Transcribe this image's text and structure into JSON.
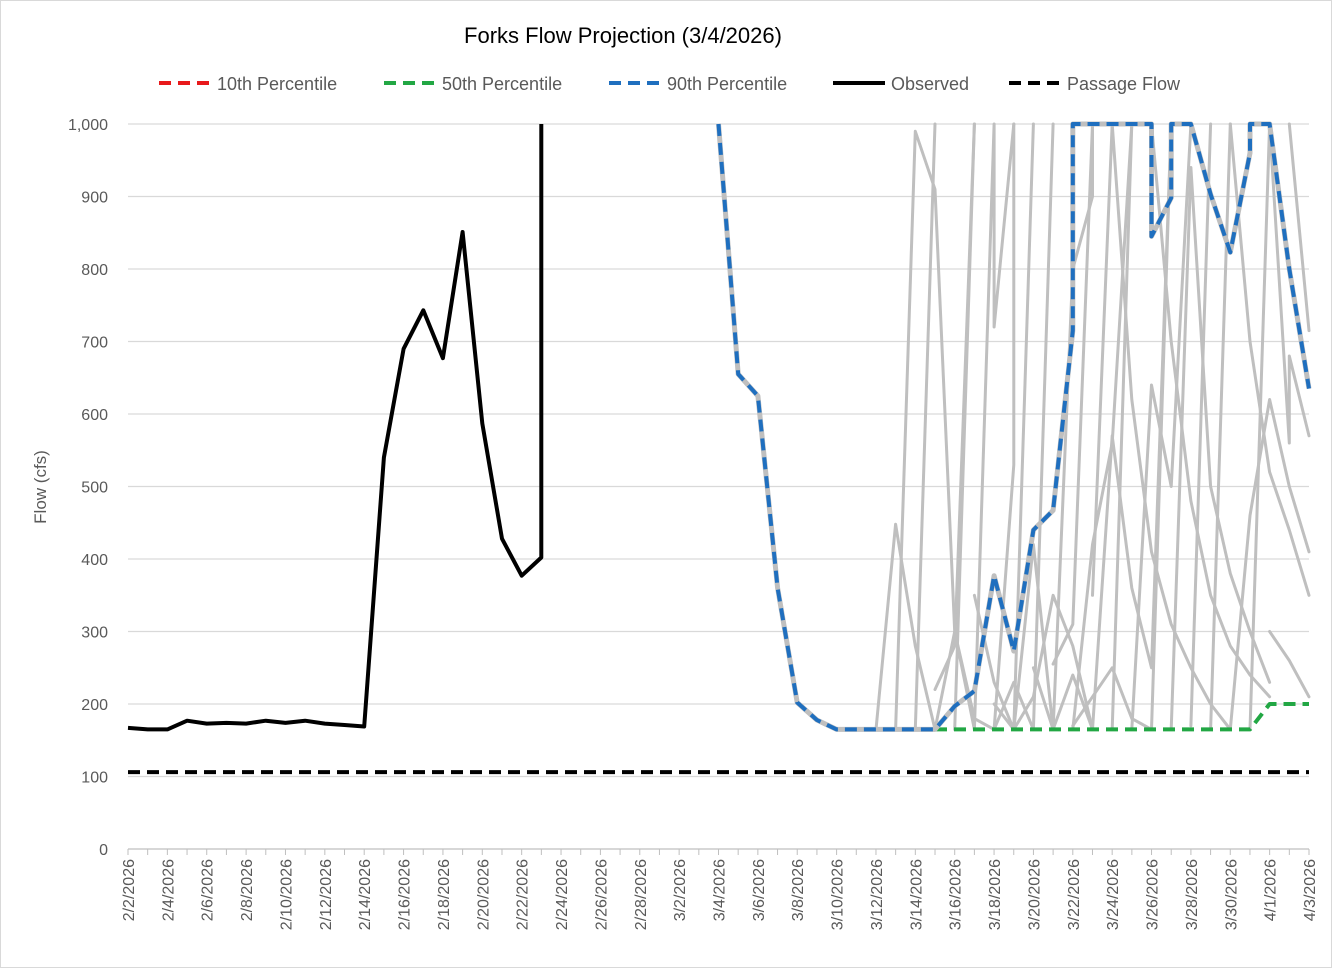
{
  "chart_data": {
    "type": "line",
    "title": "Forks Flow Projection (3/4/2026)",
    "ylabel": "Flow (cfs)",
    "xlabel": "",
    "ylim": [
      0,
      1000
    ],
    "yticks": [
      0,
      100,
      200,
      300,
      400,
      500,
      600,
      700,
      800,
      900,
      1000
    ],
    "ytick_labels": [
      "0",
      "100",
      "200",
      "300",
      "400",
      "500",
      "600",
      "700",
      "800",
      "900",
      "1,000"
    ],
    "x_start": "2/2/2026",
    "x_end": "4/3/2026",
    "xtick_labels": [
      "2/2/2026",
      "2/4/2026",
      "2/6/2026",
      "2/8/2026",
      "2/10/2026",
      "2/12/2026",
      "2/14/2026",
      "2/16/2026",
      "2/18/2026",
      "2/20/2026",
      "2/22/2026",
      "2/24/2026",
      "2/26/2026",
      "2/28/2026",
      "3/2/2026",
      "3/4/2026",
      "3/6/2026",
      "3/8/2026",
      "3/10/2026",
      "3/12/2026",
      "3/14/2026",
      "3/16/2026",
      "3/18/2026",
      "3/20/2026",
      "3/22/2026",
      "3/24/2026",
      "3/26/2026",
      "3/28/2026",
      "3/30/2026",
      "4/1/2026",
      "4/3/2026"
    ],
    "grid": true,
    "legend_position": "top",
    "legend": [
      {
        "name": "10th Percentile",
        "color": "#e8191b",
        "style": "dashed"
      },
      {
        "name": "50th Percentile",
        "color": "#22a744",
        "style": "dashed"
      },
      {
        "name": "90th Percentile",
        "color": "#1f6fbf",
        "style": "dashed"
      },
      {
        "name": "Observed",
        "color": "#000000",
        "style": "solid"
      },
      {
        "name": "Passage Flow",
        "color": "#000000",
        "style": "dashed"
      }
    ],
    "series": [
      {
        "name": "Observed",
        "color": "#000000",
        "style": "solid",
        "points": [
          [
            "2/2/2026",
            167
          ],
          [
            "2/3/2026",
            165
          ],
          [
            "2/4/2026",
            165
          ],
          [
            "2/5/2026",
            177
          ],
          [
            "2/6/2026",
            173
          ],
          [
            "2/7/2026",
            174
          ],
          [
            "2/8/2026",
            173
          ],
          [
            "2/9/2026",
            177
          ],
          [
            "2/10/2026",
            174
          ],
          [
            "2/11/2026",
            177
          ],
          [
            "2/12/2026",
            173
          ],
          [
            "2/13/2026",
            171
          ],
          [
            "2/14/2026",
            169
          ],
          [
            "2/15/2026",
            540
          ],
          [
            "2/16/2026",
            690
          ],
          [
            "2/17/2026",
            743
          ],
          [
            "2/18/2026",
            677
          ],
          [
            "2/19/2026",
            851
          ],
          [
            "2/20/2026",
            587
          ],
          [
            "2/21/2026",
            428
          ],
          [
            "2/22/2026",
            377
          ],
          [
            "2/23/2026",
            402
          ],
          [
            "2/23/2026",
            1000
          ]
        ]
      },
      {
        "name": "Passage Flow",
        "color": "#000000",
        "style": "dashed",
        "points": [
          [
            "2/2/2026",
            106
          ],
          [
            "4/3/2026",
            106
          ]
        ]
      },
      {
        "name": "90th Percentile",
        "color": "#1f6fbf",
        "style": "dashed",
        "points": [
          [
            "3/4/2026",
            1000
          ],
          [
            "3/5/2026",
            655
          ],
          [
            "3/6/2026",
            625
          ],
          [
            "3/7/2026",
            360
          ],
          [
            "3/8/2026",
            202
          ],
          [
            "3/9/2026",
            178
          ],
          [
            "3/10/2026",
            165
          ],
          [
            "3/11/2026",
            165
          ],
          [
            "3/12/2026",
            165
          ],
          [
            "3/13/2026",
            165
          ],
          [
            "3/14/2026",
            165
          ],
          [
            "3/15/2026",
            165
          ],
          [
            "3/16/2026",
            197
          ],
          [
            "3/17/2026",
            218
          ],
          [
            "3/18/2026",
            377
          ],
          [
            "3/19/2026",
            273
          ],
          [
            "3/20/2026",
            440
          ],
          [
            "3/21/2026",
            467
          ],
          [
            "3/22/2026",
            715
          ],
          [
            "3/22/2026",
            1000
          ],
          [
            "3/26/2026",
            1000
          ],
          [
            "3/26/2026",
            845
          ],
          [
            "3/27/2026",
            898
          ],
          [
            "3/27/2026",
            1000
          ],
          [
            "3/28/2026",
            1000
          ],
          [
            "3/29/2026",
            903
          ],
          [
            "3/30/2026",
            823
          ],
          [
            "3/31/2026",
            960
          ],
          [
            "3/31/2026",
            1000
          ],
          [
            "4/1/2026",
            1000
          ],
          [
            "4/2/2026",
            800
          ],
          [
            "4/3/2026",
            635
          ]
        ]
      },
      {
        "name": "50th Percentile",
        "color": "#22a744",
        "style": "dashed",
        "points": [
          [
            "3/15/2026",
            165
          ],
          [
            "3/31/2026",
            165
          ],
          [
            "4/1/2026",
            200
          ],
          [
            "4/3/2026",
            200
          ]
        ]
      },
      {
        "name": "10th Percentile",
        "color": "#e8191b",
        "style": "dashed",
        "points": []
      }
    ],
    "ensemble_color": "#bfbfbf",
    "ensemble_traces": [
      [
        [
          "3/12/2026",
          165
        ],
        [
          "3/13/2026",
          448
        ],
        [
          "3/14/2026",
          280
        ],
        [
          "3/15/2026",
          165
        ],
        [
          "3/16/2026",
          300
        ],
        [
          "3/17/2026",
          180
        ],
        [
          "3/18/2026",
          165
        ],
        [
          "3/19/2026",
          230
        ],
        [
          "3/20/2026",
          165
        ]
      ],
      [
        [
          "3/13/2026",
          165
        ],
        [
          "3/14/2026",
          990
        ],
        [
          "3/15/2026",
          910
        ],
        [
          "3/16/2026",
          300
        ],
        [
          "3/17/2026",
          165
        ]
      ],
      [
        [
          "3/14/2026",
          165
        ],
        [
          "3/15/2026",
          1000
        ]
      ],
      [
        [
          "3/15/2026",
          220
        ],
        [
          "3/16/2026",
          280
        ],
        [
          "3/17/2026",
          1000
        ]
      ],
      [
        [
          "3/16/2026",
          165
        ],
        [
          "3/17/2026",
          1000
        ]
      ],
      [
        [
          "3/17/2026",
          165
        ],
        [
          "3/18/2026",
          1000
        ],
        [
          "3/18/2026",
          720
        ],
        [
          "3/19/2026",
          1000
        ]
      ],
      [
        [
          "3/17/2026",
          350
        ],
        [
          "3/18/2026",
          230
        ],
        [
          "3/19/2026",
          165
        ],
        [
          "3/20/2026",
          420
        ],
        [
          "3/21/2026",
          165
        ]
      ],
      [
        [
          "3/18/2026",
          165
        ],
        [
          "3/19/2026",
          530
        ],
        [
          "3/19/2026",
          1000
        ]
      ],
      [
        [
          "3/18/2026",
          200
        ],
        [
          "3/19/2026",
          165
        ],
        [
          "3/20/2026",
          210
        ],
        [
          "3/21/2026",
          350
        ],
        [
          "3/22/2026",
          280
        ],
        [
          "3/23/2026",
          165
        ]
      ],
      [
        [
          "3/19/2026",
          165
        ],
        [
          "3/20/2026",
          1000
        ]
      ],
      [
        [
          "3/20/2026",
          250
        ],
        [
          "3/21/2026",
          165
        ],
        [
          "3/22/2026",
          240
        ],
        [
          "3/23/2026",
          165
        ]
      ],
      [
        [
          "3/20/2026",
          165
        ],
        [
          "3/21/2026",
          1000
        ]
      ],
      [
        [
          "3/21/2026",
          255
        ],
        [
          "3/22/2026",
          310
        ],
        [
          "3/23/2026",
          1000
        ]
      ],
      [
        [
          "3/21/2026",
          165
        ],
        [
          "3/22/2026",
          800
        ],
        [
          "3/23/2026",
          900
        ],
        [
          "3/23/2026",
          1000
        ]
      ],
      [
        [
          "3/22/2026",
          165
        ],
        [
          "3/23/2026",
          420
        ],
        [
          "3/24/2026",
          560
        ],
        [
          "3/25/2026",
          1000
        ]
      ],
      [
        [
          "3/22/2026",
          170
        ],
        [
          "3/23/2026",
          210
        ],
        [
          "3/24/2026",
          250
        ],
        [
          "3/25/2026",
          180
        ],
        [
          "3/26/2026",
          165
        ]
      ],
      [
        [
          "3/23/2026",
          165
        ],
        [
          "3/24/2026",
          570
        ],
        [
          "3/25/2026",
          360
        ],
        [
          "3/26/2026",
          250
        ],
        [
          "3/27/2026",
          1000
        ]
      ],
      [
        [
          "3/23/2026",
          350
        ],
        [
          "3/24/2026",
          1000
        ]
      ],
      [
        [
          "3/24/2026",
          165
        ],
        [
          "3/25/2026",
          1000
        ]
      ],
      [
        [
          "3/24/2026",
          1000
        ],
        [
          "3/25/2026",
          620
        ],
        [
          "3/26/2026",
          410
        ],
        [
          "3/27/2026",
          310
        ],
        [
          "3/28/2026",
          250
        ],
        [
          "3/29/2026",
          200
        ],
        [
          "3/30/2026",
          165
        ]
      ],
      [
        [
          "3/25/2026",
          165
        ],
        [
          "3/26/2026",
          640
        ],
        [
          "3/27/2026",
          500
        ],
        [
          "3/28/2026",
          1000
        ]
      ],
      [
        [
          "3/26/2026",
          165
        ],
        [
          "3/27/2026",
          1000
        ]
      ],
      [
        [
          "3/26/2026",
          1000
        ],
        [
          "3/27/2026",
          700
        ],
        [
          "3/28/2026",
          480
        ],
        [
          "3/29/2026",
          350
        ],
        [
          "3/30/2026",
          280
        ],
        [
          "3/31/2026",
          240
        ],
        [
          "4/1/2026",
          210
        ]
      ],
      [
        [
          "3/27/2026",
          165
        ],
        [
          "3/28/2026",
          940
        ],
        [
          "3/29/2026",
          500
        ],
        [
          "3/30/2026",
          380
        ],
        [
          "3/31/2026",
          300
        ],
        [
          "4/1/2026",
          230
        ]
      ],
      [
        [
          "3/28/2026",
          170
        ],
        [
          "3/29/2026",
          1000
        ]
      ],
      [
        [
          "3/29/2026",
          165
        ],
        [
          "3/30/2026",
          1000
        ]
      ],
      [
        [
          "3/30/2026",
          165
        ],
        [
          "3/31/2026",
          460
        ],
        [
          "4/1/2026",
          620
        ],
        [
          "4/2/2026",
          500
        ],
        [
          "4/3/2026",
          410
        ]
      ],
      [
        [
          "3/30/2026",
          1000
        ],
        [
          "3/31/2026",
          700
        ],
        [
          "4/1/2026",
          520
        ],
        [
          "4/2/2026",
          440
        ],
        [
          "4/3/2026",
          350
        ]
      ],
      [
        [
          "3/31/2026",
          165
        ],
        [
          "4/1/2026",
          1000
        ]
      ],
      [
        [
          "4/1/2026",
          1000
        ],
        [
          "4/2/2026",
          560
        ],
        [
          "4/2/2026",
          680
        ],
        [
          "4/3/2026",
          570
        ]
      ],
      [
        [
          "4/1/2026",
          300
        ],
        [
          "4/2/2026",
          260
        ],
        [
          "4/3/2026",
          210
        ]
      ],
      [
        [
          "4/2/2026",
          1000
        ],
        [
          "4/3/2026",
          715
        ]
      ]
    ]
  }
}
